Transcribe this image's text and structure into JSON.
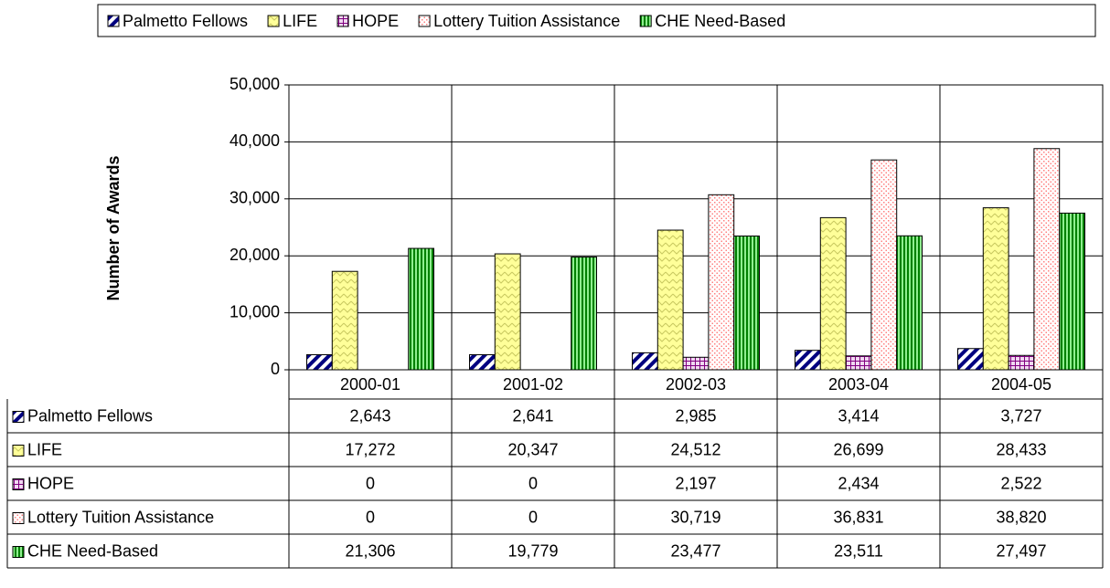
{
  "chart_data": {
    "type": "bar",
    "y_axis_label": "Number of Awards",
    "categories": [
      "2000-01",
      "2001-02",
      "2002-03",
      "2003-04",
      "2004-05"
    ],
    "series": [
      {
        "name": "Palmetto Fellows",
        "color": "#000080",
        "values": [
          2643,
          2641,
          2985,
          3414,
          3727
        ],
        "value_labels": [
          "2,643",
          "2,641",
          "2,985",
          "3,414",
          "3,727"
        ]
      },
      {
        "name": "LIFE",
        "color": "#ffff99",
        "values": [
          17272,
          20347,
          24512,
          26699,
          28433
        ],
        "value_labels": [
          "17,272",
          "20,347",
          "24,512",
          "26,699",
          "28,433"
        ]
      },
      {
        "name": "HOPE",
        "color": "#800080",
        "values": [
          0,
          0,
          2197,
          2434,
          2522
        ],
        "value_labels": [
          "0",
          "0",
          "2,197",
          "2,434",
          "2,522"
        ]
      },
      {
        "name": "Lottery Tuition Assistance",
        "color": "#ff8080",
        "values": [
          0,
          0,
          30719,
          36831,
          38820
        ],
        "value_labels": [
          "0",
          "0",
          "30,719",
          "36,831",
          "38,820"
        ]
      },
      {
        "name": "CHE Need-Based",
        "color": "#008000",
        "values": [
          21306,
          19779,
          23477,
          23511,
          27497
        ],
        "value_labels": [
          "21,306",
          "19,779",
          "23,477",
          "23,511",
          "27,497"
        ]
      }
    ],
    "ylim": [
      0,
      50000
    ],
    "yticks": [
      0,
      {
        "value": 10000,
        "label": "10,000"
      },
      {
        "value": 20000,
        "label": "20,000"
      },
      {
        "value": 30000,
        "label": "30,000"
      },
      {
        "value": 40000,
        "label": "40,000"
      },
      {
        "value": 50000,
        "label": "50,000"
      }
    ],
    "grid": true,
    "legend": "top"
  }
}
